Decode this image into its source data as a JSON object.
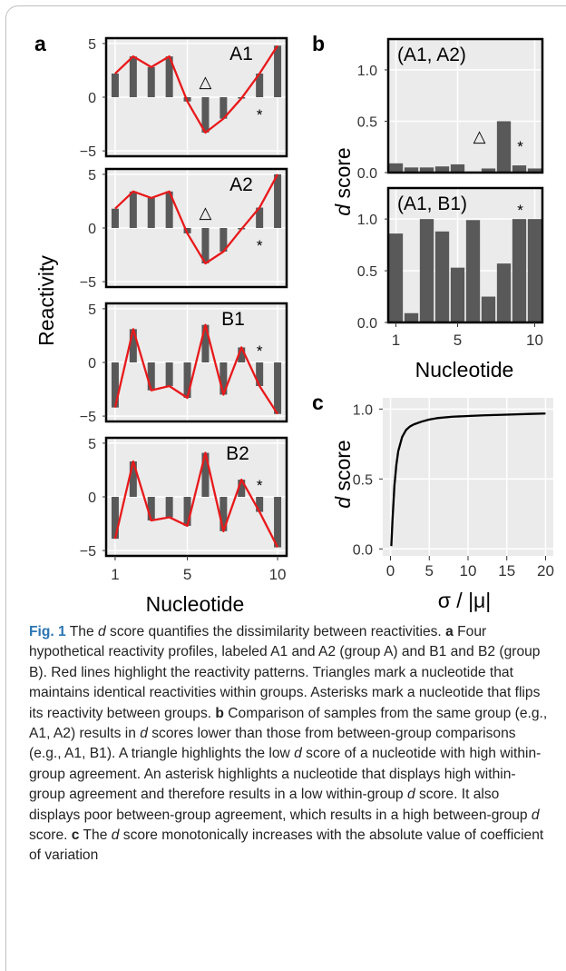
{
  "figure": {
    "panel_letters": {
      "a": "a",
      "b": "b",
      "c": "c"
    },
    "labels": {
      "reactivity_ylabel": "Reactivity",
      "nucleotide_xlabel": "Nucleotide",
      "dscore_ylabel_italic": "d",
      "dscore_ylabel_rest": " score",
      "c_xlabel": "σ / |μ|"
    },
    "markers": {
      "triangle": "△",
      "asterisk": "*"
    }
  },
  "chart_data": [
    {
      "panel": "a",
      "type": "bar",
      "overlay": "line",
      "x": [
        1,
        2,
        3,
        4,
        5,
        6,
        7,
        8,
        9,
        10
      ],
      "xticks": [
        "1",
        "5",
        "10"
      ],
      "yticks": [
        "5",
        "0",
        "−5"
      ],
      "ylim": [
        -5.5,
        5.5
      ],
      "xlabel": "Nucleotide",
      "ylabel": "Reactivity",
      "colors": {
        "bar": "#595959",
        "line": "#e8191b",
        "panel_bg": "#ebebeb",
        "grid": "#ffffff"
      },
      "series": [
        {
          "name": "A1",
          "values": [
            2.2,
            3.8,
            2.8,
            3.8,
            -0.4,
            -3.3,
            -2.0,
            -0.1,
            2.2,
            4.8
          ],
          "triangle_at": 6,
          "asterisk_at": 9
        },
        {
          "name": "A2",
          "values": [
            1.8,
            3.4,
            2.8,
            3.4,
            -0.5,
            -3.3,
            -2.2,
            -0.1,
            1.9,
            5.0
          ],
          "triangle_at": 6,
          "asterisk_at": 9
        },
        {
          "name": "B1",
          "values": [
            -4.2,
            3.1,
            -2.6,
            -2.2,
            -3.3,
            3.5,
            -3.0,
            1.4,
            -2.2,
            -4.8
          ],
          "asterisk_at": 9
        },
        {
          "name": "B2",
          "values": [
            -3.9,
            3.3,
            -2.2,
            -1.9,
            -2.7,
            4.1,
            -3.2,
            1.6,
            -1.4,
            -4.7
          ],
          "asterisk_at": 9
        }
      ]
    },
    {
      "panel": "b",
      "type": "bar",
      "x": [
        1,
        2,
        3,
        4,
        5,
        6,
        7,
        8,
        9,
        10
      ],
      "xticks": [
        "1",
        "5",
        "10"
      ],
      "yticks": [
        "0.0",
        "0.5",
        "1.0"
      ],
      "ylim": [
        0,
        1.3
      ],
      "xlabel": "Nucleotide",
      "ylabel": "d score",
      "colors": {
        "bar": "#595959",
        "panel_bg": "#ebebeb",
        "grid": "#ffffff"
      },
      "series": [
        {
          "name": "(A1, A2)",
          "values": [
            0.09,
            0.05,
            0.05,
            0.06,
            0.08,
            0.01,
            0.04,
            0.5,
            0.07,
            0.04
          ],
          "triangle_at": 6,
          "asterisk_at": 9
        },
        {
          "name": "(A1, B1)",
          "values": [
            0.86,
            0.09,
            1.0,
            0.88,
            0.53,
            0.99,
            0.25,
            0.57,
            1.0,
            1.0
          ],
          "asterisk_at": 9
        }
      ]
    },
    {
      "panel": "c",
      "type": "line",
      "x": [
        0.1,
        0.25,
        0.5,
        0.75,
        1,
        1.5,
        2,
        2.5,
        3,
        4,
        5,
        6,
        8,
        10,
        12,
        15,
        18,
        20
      ],
      "y": [
        0.02,
        0.2,
        0.45,
        0.6,
        0.7,
        0.8,
        0.85,
        0.875,
        0.89,
        0.91,
        0.925,
        0.935,
        0.945,
        0.95,
        0.955,
        0.96,
        0.965,
        0.968
      ],
      "xticks": [
        "0",
        "5",
        "10",
        "15",
        "20"
      ],
      "yticks": [
        "0.0",
        "0.5",
        "1.0"
      ],
      "xlim": [
        -1,
        21
      ],
      "ylim": [
        -0.05,
        1.08
      ],
      "xlabel": "σ / |μ|",
      "ylabel": "d score",
      "colors": {
        "line": "#000000",
        "panel_bg": "#ebebeb",
        "grid": "#ffffff"
      }
    }
  ],
  "caption": {
    "fig_label": "Fig. 1",
    "intro_1": " The ",
    "intro_d": "d",
    "intro_2": " score quantifies the dissimilarity between reactivities. ",
    "a_letter": "a",
    "a_text": " Four hypothetical reactivity profiles, labeled A1 and A2 (group A) and B1 and B2 (group B). Red lines highlight the reactivity patterns. Triangles mark a nucleotide that maintains identical reactivities within groups. Asterisks mark a nucleotide that flips its reactivity between groups. ",
    "b_letter": "b",
    "b_text_1": " Comparison of samples from the same group (e.g., A1, A2) results in ",
    "b_d1": "d",
    "b_text_2": " scores lower than those from between-group comparisons (e.g., A1, B1). A triangle highlights the low ",
    "b_d2": "d",
    "b_text_3": " score of a nucleotide with high within-group agreement. An asterisk highlights a nucleotide that displays high within-group agreement and therefore results in a low within-group ",
    "b_d3": "d",
    "b_text_4": " score. It also displays poor between-group agreement, which results in a high between-group ",
    "b_d4": "d",
    "b_text_5": " score. ",
    "c_letter": "c",
    "c_text_1": " The ",
    "c_d": "d",
    "c_text_2": " score monotonically increases with the absolute value of coefficient of variation"
  }
}
